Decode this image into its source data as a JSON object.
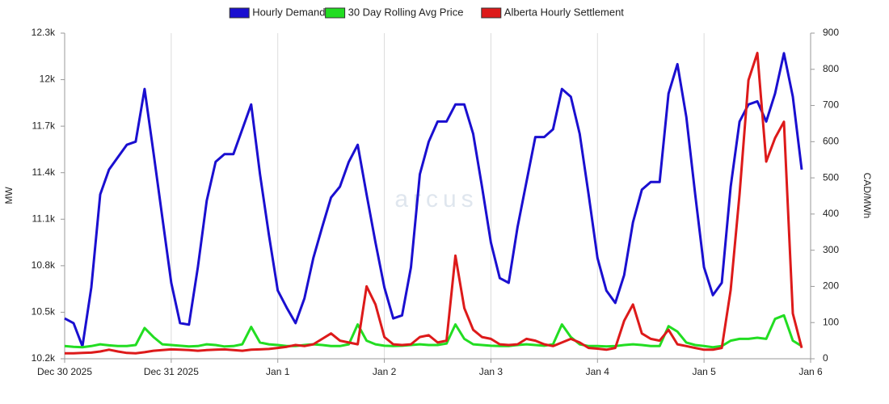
{
  "chart_data": {
    "type": "line",
    "legend": "top",
    "grid": "x",
    "watermark": "arcus",
    "ylabel": "MW",
    "y2label": "CAD/MWh",
    "xlim": [
      0,
      168
    ],
    "xticks": [
      {
        "value": 0,
        "label": "Dec 30 2025"
      },
      {
        "value": 24,
        "label": "Dec 31 2025"
      },
      {
        "value": 48,
        "label": "Jan 1"
      },
      {
        "value": 72,
        "label": "Jan 2"
      },
      {
        "value": 96,
        "label": "Jan 3"
      },
      {
        "value": 120,
        "label": "Jan 4"
      },
      {
        "value": 144,
        "label": "Jan 5"
      },
      {
        "value": 168,
        "label": "Jan 6"
      }
    ],
    "ylim": [
      10200,
      12300
    ],
    "yticks": [
      {
        "value": 10200,
        "label": "10.2k"
      },
      {
        "value": 10500,
        "label": "10.5k"
      },
      {
        "value": 10800,
        "label": "10.8k"
      },
      {
        "value": 11100,
        "label": "11.1k"
      },
      {
        "value": 11400,
        "label": "11.4k"
      },
      {
        "value": 11700,
        "label": "11.7k"
      },
      {
        "value": 12000,
        "label": "12k"
      },
      {
        "value": 12300,
        "label": "12.3k"
      }
    ],
    "y2lim": [
      0,
      900
    ],
    "y2ticks": [
      0,
      100,
      200,
      300,
      400,
      500,
      600,
      700,
      800,
      900
    ],
    "x": [
      0,
      2,
      4,
      6,
      8,
      10,
      12,
      14,
      16,
      18,
      20,
      22,
      24,
      26,
      28,
      30,
      32,
      34,
      36,
      38,
      40,
      42,
      44,
      46,
      48,
      50,
      52,
      54,
      56,
      58,
      60,
      62,
      64,
      66,
      68,
      70,
      72,
      74,
      76,
      78,
      80,
      82,
      84,
      86,
      88,
      90,
      92,
      94,
      96,
      98,
      100,
      102,
      104,
      106,
      108,
      110,
      112,
      114,
      116,
      118,
      120,
      122,
      124,
      126,
      128,
      130,
      132,
      134,
      136,
      138,
      140,
      142,
      144,
      146,
      148,
      150,
      152,
      154,
      156,
      158,
      160,
      162,
      164,
      166
    ],
    "series": [
      {
        "name": "Hourly Demand",
        "color": "#1a0fd0",
        "axis": "y",
        "values": [
          10460,
          10430,
          10280,
          10660,
          11260,
          11420,
          11500,
          11580,
          11600,
          11940,
          11530,
          11110,
          10690,
          10430,
          10420,
          10790,
          11220,
          11470,
          11520,
          11520,
          11680,
          11840,
          11390,
          11000,
          10640,
          10530,
          10430,
          10590,
          10850,
          11050,
          11240,
          11310,
          11470,
          11580,
          11260,
          10950,
          10660,
          10460,
          10480,
          10790,
          11390,
          11600,
          11730,
          11730,
          11840,
          11840,
          11650,
          11310,
          10950,
          10720,
          10690,
          11050,
          11340,
          11630,
          11630,
          11680,
          11940,
          11890,
          11650,
          11260,
          10850,
          10640,
          10560,
          10740,
          11080,
          11290,
          11340,
          11340,
          11910,
          12100,
          11760,
          11260,
          10790,
          10610,
          10690,
          11310,
          11730,
          11840,
          11860,
          11730,
          11910,
          12170,
          11890,
          11420
        ]
      },
      {
        "name": "30 Day Rolling Avg Price",
        "color": "#22dd22",
        "axis": "y2",
        "values": [
          35,
          33,
          32,
          35,
          40,
          37,
          35,
          35,
          38,
          85,
          60,
          40,
          38,
          36,
          34,
          35,
          40,
          38,
          34,
          35,
          40,
          88,
          45,
          40,
          38,
          35,
          35,
          38,
          40,
          38,
          35,
          35,
          40,
          95,
          50,
          40,
          36,
          35,
          36,
          38,
          40,
          38,
          38,
          42,
          95,
          55,
          40,
          38,
          36,
          35,
          35,
          38,
          40,
          38,
          36,
          40,
          95,
          60,
          40,
          35,
          35,
          34,
          35,
          38,
          40,
          38,
          35,
          35,
          90,
          75,
          45,
          38,
          35,
          32,
          35,
          50,
          55,
          55,
          58,
          55,
          110,
          120,
          50,
          35
        ]
      },
      {
        "name": "Alberta Hourly Settlement",
        "color": "#dd1a1a",
        "axis": "y2",
        "values": [
          15,
          15,
          16,
          17,
          20,
          25,
          20,
          16,
          15,
          18,
          22,
          24,
          26,
          25,
          24,
          22,
          24,
          25,
          26,
          24,
          22,
          25,
          26,
          27,
          30,
          33,
          38,
          35,
          40,
          55,
          70,
          50,
          45,
          40,
          200,
          150,
          60,
          40,
          38,
          40,
          60,
          65,
          45,
          50,
          285,
          140,
          80,
          60,
          55,
          40,
          38,
          40,
          55,
          50,
          40,
          35,
          45,
          55,
          45,
          30,
          28,
          25,
          30,
          105,
          150,
          70,
          55,
          50,
          80,
          40,
          35,
          30,
          25,
          25,
          30,
          190,
          455,
          770,
          845,
          545,
          610,
          655,
          125,
          30
        ]
      }
    ]
  }
}
